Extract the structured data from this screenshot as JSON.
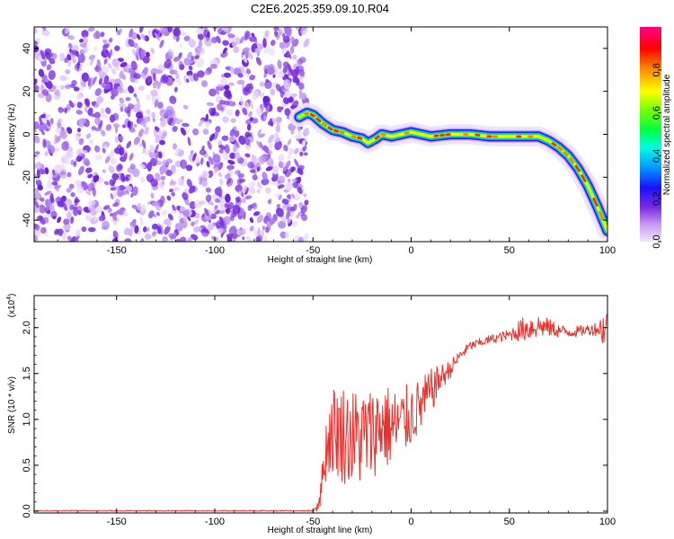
{
  "title": "C2E6.2025.359.09.10.R04",
  "chart_data": [
    {
      "type": "heatmap",
      "xlabel": "Height of straight line (km)",
      "ylabel": "Frequency (Hz)",
      "xlim": [
        -192,
        100
      ],
      "ylim": [
        -50,
        50
      ],
      "xticks": [
        -150,
        -100,
        -50,
        0,
        50,
        100
      ],
      "yticks": [
        -40,
        -20,
        0,
        20,
        40
      ],
      "noise_region_x": [
        -192,
        -56
      ],
      "ridge": {
        "x": [
          -57,
          -53,
          -50,
          -45,
          -40,
          -35,
          -30,
          -25,
          -22,
          -18,
          -15,
          -10,
          -5,
          0,
          5,
          10,
          20,
          30,
          40,
          50,
          60,
          65,
          70,
          75,
          80,
          85,
          90,
          95,
          100
        ],
        "y": [
          8,
          10,
          9,
          5,
          2,
          1,
          -1,
          -2,
          -4,
          -2,
          0,
          -1,
          0,
          1,
          0,
          -1,
          0,
          0,
          -1,
          -1,
          -1,
          -1,
          -3,
          -6,
          -10,
          -16,
          -24,
          -34,
          -45
        ]
      },
      "colorbar": {
        "label": "Normalized spectral amplitude",
        "ticks": [
          "0.0",
          "0.2",
          "0.4",
          "0.6",
          "0.8"
        ],
        "range": [
          0,
          1
        ]
      }
    },
    {
      "type": "line",
      "xlabel": "Height of straight line (km)",
      "ylabel": "SNR (10 * v/v)",
      "y_multiplier": "(x10",
      "y_multiplier_exp": "4",
      "y_multiplier_close": ")",
      "xlim": [
        -192,
        100
      ],
      "ylim": [
        -0.02,
        2.35
      ],
      "xticks": [
        -150,
        -100,
        -50,
        0,
        50,
        100
      ],
      "yticks": [
        "0.0",
        "0.5",
        "1.0",
        "1.5",
        "2.0"
      ],
      "series": [
        {
          "color": "#e8322e",
          "envelope": {
            "x": [
              -192,
              -50,
              -48,
              -46,
              -44,
              -42,
              -40,
              -35,
              -30,
              -25,
              -20,
              -15,
              -10,
              -5,
              0,
              5,
              10,
              15,
              20,
              25,
              30,
              40,
              50,
              55,
              60,
              65,
              70,
              75,
              80,
              85,
              90,
              95,
              100
            ],
            "mean": [
              0.0,
              0.0,
              0.05,
              0.2,
              0.6,
              0.8,
              0.9,
              0.85,
              0.8,
              0.8,
              0.85,
              0.95,
              0.9,
              0.95,
              1.05,
              1.15,
              1.3,
              1.45,
              1.55,
              1.7,
              1.8,
              1.87,
              1.92,
              1.97,
              2.0,
              2.02,
              2.0,
              1.97,
              1.95,
              1.96,
              1.98,
              1.99,
              2.0
            ],
            "amplitude": [
              0.01,
              0.01,
              0.06,
              0.15,
              0.3,
              0.45,
              0.5,
              0.55,
              0.55,
              0.55,
              0.5,
              0.5,
              0.45,
              0.4,
              0.35,
              0.3,
              0.25,
              0.15,
              0.1,
              0.06,
              0.05,
              0.05,
              0.06,
              0.12,
              0.15,
              0.13,
              0.1,
              0.08,
              0.06,
              0.06,
              0.06,
              0.08,
              0.3
            ]
          }
        }
      ]
    }
  ]
}
